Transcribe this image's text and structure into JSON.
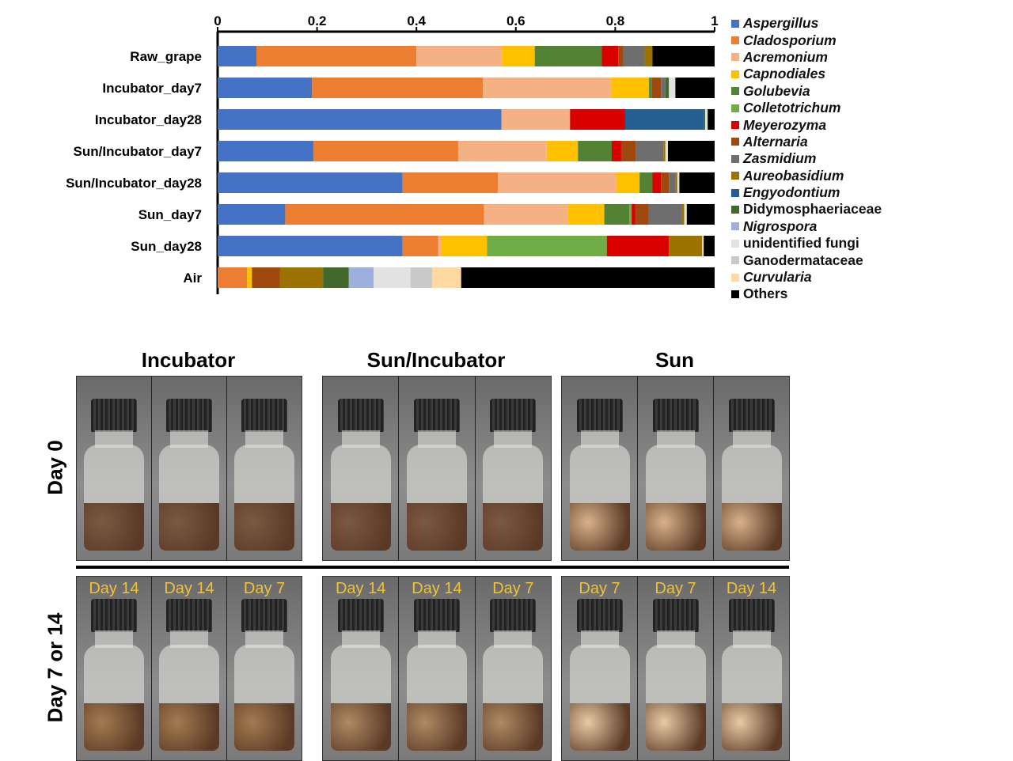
{
  "chart_data": {
    "type": "bar",
    "orientation": "horizontal",
    "stacked": true,
    "xlim": [
      0,
      1
    ],
    "xticks": [
      "0",
      "0.2",
      "0.4",
      "0.6",
      "0.8",
      "1"
    ],
    "categories": [
      "Raw_grape",
      "Incubator_day7",
      "Incubator_day28",
      "Sun/Incubator_day7",
      "Sun/Incubator_day28",
      "Sun_day7",
      "Sun_day28",
      "Air"
    ],
    "legend_position": "right",
    "series": [
      {
        "name": "Aspergillus",
        "italic": true,
        "color": "#4472C4",
        "values": [
          0.078,
          0.19,
          0.571,
          0.193,
          0.372,
          0.136,
          0.372,
          0
        ]
      },
      {
        "name": "Cladosporium",
        "italic": true,
        "color": "#ED7D31",
        "values": [
          0.322,
          0.344,
          0,
          0.291,
          0.192,
          0.4,
          0.072,
          0.059
        ]
      },
      {
        "name": "Acremonium",
        "italic": true,
        "color": "#F4B183",
        "values": [
          0.172,
          0.258,
          0.138,
          0.178,
          0.238,
          0.168,
          0.005,
          0
        ]
      },
      {
        "name": "Capnodiales",
        "italic": true,
        "color": "#FFC000",
        "values": [
          0.066,
          0.076,
          0,
          0.063,
          0.047,
          0.074,
          0.093,
          0.01
        ]
      },
      {
        "name": "Golubevia",
        "italic": true,
        "color": "#548235",
        "values": [
          0.135,
          0.006,
          0,
          0.068,
          0.026,
          0.05,
          0,
          0
        ]
      },
      {
        "name": "Colletotrichum",
        "italic": true,
        "color": "#70AD47",
        "values": [
          0,
          0,
          0,
          0,
          0,
          0.005,
          0.241,
          0
        ]
      },
      {
        "name": "Meyerozyma",
        "italic": true,
        "color": "#D90000",
        "values": [
          0.033,
          0,
          0.111,
          0.019,
          0.017,
          0.007,
          0.125,
          0
        ]
      },
      {
        "name": "Alternaria",
        "italic": true,
        "color": "#A0490F",
        "values": [
          0.01,
          0.018,
          0,
          0.03,
          0.016,
          0.027,
          0,
          0.056
        ]
      },
      {
        "name": "Zasmidium",
        "italic": true,
        "color": "#6E6E6E",
        "values": [
          0.043,
          0.009,
          0,
          0.055,
          0.013,
          0.067,
          0,
          0
        ]
      },
      {
        "name": "Aureobasidium",
        "italic": true,
        "color": "#9C7300",
        "values": [
          0.016,
          0,
          0,
          0.004,
          0.004,
          0.005,
          0.067,
          0.087
        ]
      },
      {
        "name": "Engyodontium",
        "italic": true,
        "color": "#255E91",
        "values": [
          0,
          0,
          0.158,
          0,
          0,
          0,
          0,
          0
        ]
      },
      {
        "name": "Didymosphaeriaceae",
        "italic": false,
        "color": "#43682B",
        "values": [
          0,
          0.007,
          0.003,
          0,
          0,
          0,
          0,
          0.052
        ]
      },
      {
        "name": "Nigrospora",
        "italic": true,
        "color": "#9DB0DD",
        "values": [
          0,
          0,
          0,
          0,
          0,
          0,
          0,
          0.05
        ]
      },
      {
        "name": "unidentified fungi",
        "italic": false,
        "color": "#E2E2E2",
        "values": [
          0,
          0.013,
          0.005,
          0.005,
          0.004,
          0.005,
          0.003,
          0.074
        ]
      },
      {
        "name": "Ganodermataceae",
        "italic": false,
        "color": "#C9C9C9",
        "values": [
          0,
          0,
          0,
          0,
          0,
          0,
          0,
          0.044
        ]
      },
      {
        "name": "Curvularia",
        "italic": true,
        "color": "#FFD9A0",
        "values": [
          0,
          0,
          0,
          0,
          0,
          0,
          0,
          0.058
        ]
      },
      {
        "name": "Others",
        "italic": false,
        "color": "#000000",
        "values": [
          0.125,
          0.079,
          0.014,
          0.094,
          0.071,
          0.056,
          0.022,
          0.51
        ]
      }
    ]
  },
  "photos": {
    "groups": [
      {
        "title": "Incubator",
        "day0": [
          "",
          "",
          ""
        ],
        "later": [
          "Day 14",
          "Day 14",
          "Day 7"
        ],
        "tone0": "#7a5a42",
        "tone1": "#a57a50"
      },
      {
        "title": "Sun/Incubator",
        "day0": [
          "",
          "",
          ""
        ],
        "later": [
          "Day 14",
          "Day 14",
          "Day 7"
        ],
        "tone0": "#7d5844",
        "tone1": "#b08a62"
      },
      {
        "title": "Sun",
        "day0": [
          "",
          "",
          ""
        ],
        "later": [
          "Day 7",
          "Day 7",
          "Day 14"
        ],
        "tone0": "#d9b18a",
        "tone1": "#e8caa4"
      }
    ],
    "row_labels": [
      "Day 0",
      "Day 7 or 14"
    ]
  }
}
